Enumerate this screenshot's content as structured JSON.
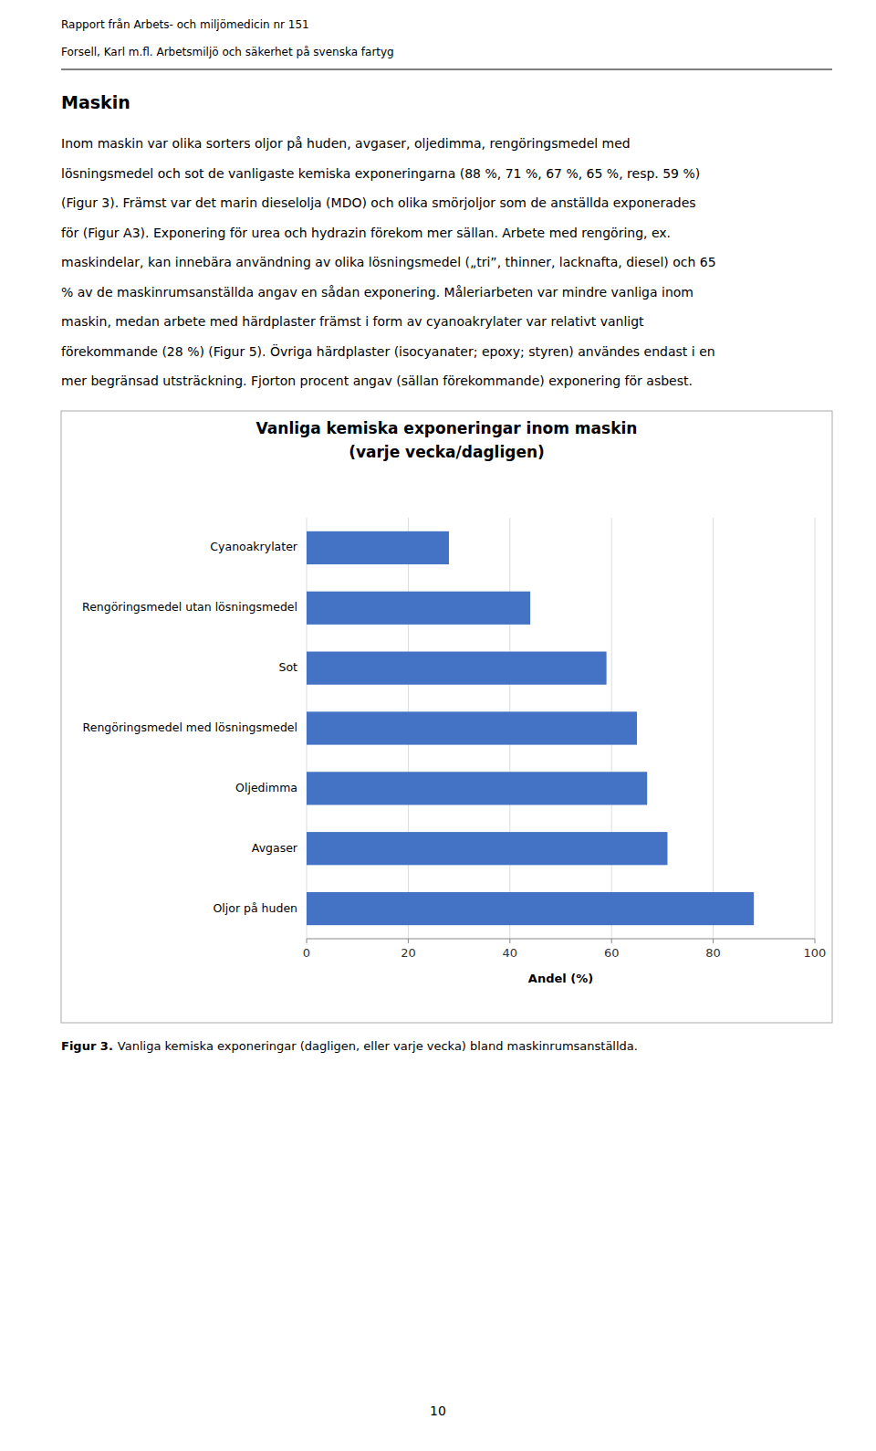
{
  "header_lines": [
    "Rapport från Arbets- och miljömedicin nr 151",
    "Forsell, Karl m.fl. Arbetsmiljö och säkerhet på svenska fartyg"
  ],
  "section_title": "Maskin",
  "body_text": [
    "Inom maskin var olika sorters oljor på huden, avgaser, oljedimma, rengöringsmedel med",
    "lösningsmedel och sot de vanligaste kemiska exponeringarna (88 %, 71 %, 67 %, 65 %, resp. 59 %)",
    "(Figur 3). Främst var det marin dieselolja (MDO) och olika smörjoljor som de anställda exponerades",
    "för (Figur A3). Exponering för urea och hydrazin förekom mer sällan. Arbete med rengöring, ex.",
    "maskindelar, kan innebära användning av olika lösningsmedel („tri”, thinner, lacknafta, diesel) och 65",
    "% av de maskinrumsanställda angav en sådan exponering. Måleriarbeten var mindre vanliga inom",
    "maskin, medan arbete med härdplaster främst i form av cyanoakrylater var relativt vanligt",
    "förekommande (28 %) (Figur 5). Övriga härdplaster (isocyanater; epoxy; styren) användes endast i en",
    "mer begränsad utsträckning. Fjorton procent angav (sällan förekommande) exponering för asbest."
  ],
  "caption_bold": "Figur 3.",
  "caption": "Vanliga kemiska exponeringar (dagligen, eller varje vecka) bland maskinrumsanställda.",
  "page_number": "10",
  "chart_data": {
    "type": "bar",
    "orientation": "horizontal",
    "title": "Vanliga kemiska exponeringar inom maskin",
    "subtitle": "(varje vecka/dagligen)",
    "x_label": "Andel (%)",
    "categories": [
      "Oljor på huden",
      "Avgaser",
      "Oljedimma",
      "Rengöringsmedel med lösningsmedel",
      "Sot",
      "Rengöringsmedel utan lösningsmedel",
      "Cyanoakrylater"
    ],
    "values": [
      88,
      71,
      67,
      65,
      59,
      44,
      28
    ],
    "color": "#4472C4",
    "xlim": [
      0,
      100
    ],
    "xticks": [
      0,
      20,
      40,
      60,
      80,
      100
    ],
    "grid": true
  }
}
